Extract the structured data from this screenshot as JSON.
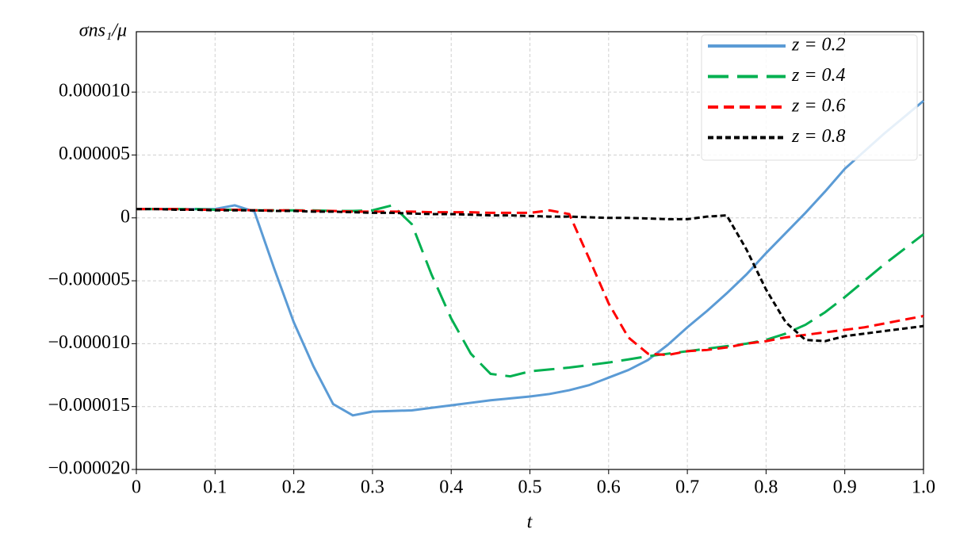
{
  "chart_data": {
    "type": "line",
    "x_label": "t",
    "y_label": "σns₁/μ",
    "x": [
      0,
      0.025,
      0.05,
      0.075,
      0.1,
      0.125,
      0.15,
      0.175,
      0.2,
      0.225,
      0.25,
      0.275,
      0.3,
      0.325,
      0.35,
      0.375,
      0.4,
      0.425,
      0.45,
      0.475,
      0.5,
      0.525,
      0.55,
      0.575,
      0.6,
      0.625,
      0.65,
      0.675,
      0.7,
      0.725,
      0.75,
      0.775,
      0.8,
      0.825,
      0.85,
      0.875,
      0.9,
      0.925,
      0.95,
      0.975,
      1
    ],
    "series": [
      {
        "name": "z = 0.2",
        "color": "#5b9bd5",
        "dash": "solid",
        "values": [
          7e-07,
          7e-07,
          7e-07,
          7e-07,
          7e-07,
          1e-06,
          5e-07,
          -4e-06,
          -8.3e-06,
          -1.18e-05,
          -1.48e-05,
          -1.57e-05,
          -1.54e-05,
          -1.535e-05,
          -1.53e-05,
          -1.51e-05,
          -1.49e-05,
          -1.47e-05,
          -1.45e-05,
          -1.435e-05,
          -1.42e-05,
          -1.4e-05,
          -1.37e-05,
          -1.33e-05,
          -1.27e-05,
          -1.21e-05,
          -1.13e-05,
          -1.01e-05,
          -8.7e-06,
          -7.4e-06,
          -6e-06,
          -4.5e-06,
          -2.8e-06,
          -1.2e-06,
          4e-07,
          2.1e-06,
          3.9e-06,
          5.3e-06,
          6.7e-06,
          8e-06,
          9.3e-06
        ]
      },
      {
        "name": "z = 0.4",
        "color": "#00b050",
        "dash": "long",
        "values": [
          7e-07,
          7e-07,
          7e-07,
          7e-07,
          6.5e-07,
          6.5e-07,
          6e-07,
          6e-07,
          6e-07,
          6e-07,
          5.5e-07,
          5.5e-07,
          6e-07,
          1e-06,
          -5e-07,
          -4.5e-06,
          -8e-06,
          -1.08e-05,
          -1.24e-05,
          -1.26e-05,
          -1.22e-05,
          -1.205e-05,
          -1.19e-05,
          -1.17e-05,
          -1.15e-05,
          -1.125e-05,
          -1.1e-05,
          -1.08e-05,
          -1.06e-05,
          -1.04e-05,
          -1.02e-05,
          -1e-05,
          -9.7e-06,
          -9.2e-06,
          -8.5e-06,
          -7.5e-06,
          -6.3e-06,
          -5e-06,
          -3.7e-06,
          -2.5e-06,
          -1.3e-06
        ]
      },
      {
        "name": "z = 0.6",
        "color": "#ff0000",
        "dash": "medium",
        "values": [
          7e-07,
          7e-07,
          7e-07,
          6.5e-07,
          6.5e-07,
          6.5e-07,
          6e-07,
          6e-07,
          6e-07,
          5.5e-07,
          5.5e-07,
          5e-07,
          5e-07,
          5e-07,
          5e-07,
          4.5e-07,
          4.5e-07,
          4.5e-07,
          4e-07,
          4e-07,
          4e-07,
          6e-07,
          3e-07,
          -3.2e-06,
          -6.8e-06,
          -9.5e-06,
          -1.08e-05,
          -1.09e-05,
          -1.06e-05,
          -1.05e-05,
          -1.03e-05,
          -1e-05,
          -9.8e-06,
          -9.5e-06,
          -9.3e-06,
          -9.1e-06,
          -8.9e-06,
          -8.7e-06,
          -8.4e-06,
          -8.1e-06,
          -7.8e-06
        ]
      },
      {
        "name": "z = 0.8",
        "color": "#000000",
        "dash": "short",
        "values": [
          7e-07,
          7e-07,
          6.5e-07,
          6.5e-07,
          6e-07,
          6e-07,
          6e-07,
          5.5e-07,
          5.5e-07,
          5e-07,
          5e-07,
          4.5e-07,
          4e-07,
          4e-07,
          3.5e-07,
          3e-07,
          3e-07,
          2.5e-07,
          2e-07,
          2e-07,
          1.5e-07,
          1e-07,
          1e-07,
          5e-08,
          0,
          0,
          -5e-08,
          -1e-07,
          -1e-07,
          1e-07,
          2e-07,
          -2.5e-06,
          -5.7e-06,
          -8.3e-06,
          -9.7e-06,
          -9.8e-06,
          -9.4e-06,
          -9.2e-06,
          -9e-06,
          -8.8e-06,
          -8.6e-06
        ]
      }
    ],
    "xlim": [
      0,
      1
    ],
    "xticks": [
      0,
      0.1,
      0.2,
      0.3,
      0.4,
      0.5,
      0.6,
      0.7,
      0.8,
      0.9,
      {
        "value": 1,
        "label": "1.0"
      }
    ],
    "ylim": [
      -2e-05,
      1.48e-05
    ],
    "yticks": [
      {
        "value": -2e-05,
        "label": "−0.000020"
      },
      {
        "value": -1.5e-05,
        "label": "−0.000015"
      },
      {
        "value": -1e-05,
        "label": "−0.000010"
      },
      {
        "value": -5e-06,
        "label": "−0.000005"
      },
      0,
      {
        "value": 5e-06,
        "label": "0.000005"
      },
      {
        "value": 1e-05,
        "label": "0.000010"
      }
    ],
    "grid": true,
    "legend": "upper right"
  }
}
